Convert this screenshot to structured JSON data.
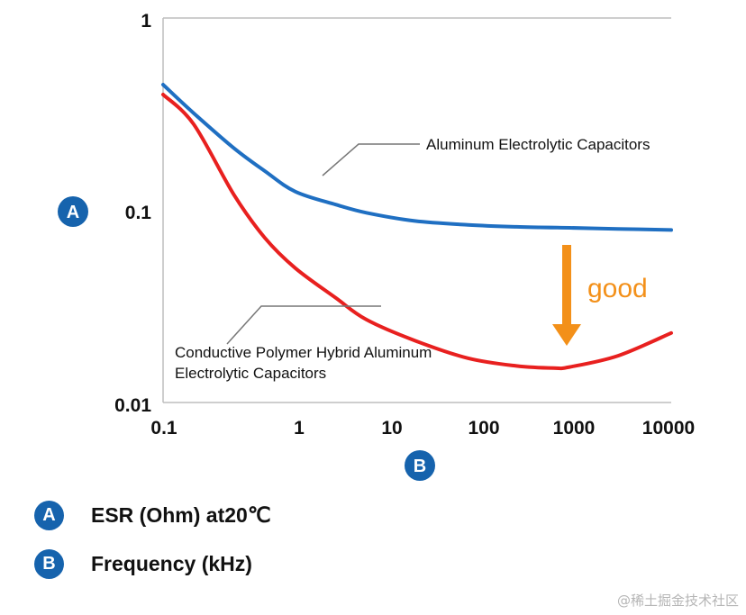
{
  "chart_data": {
    "type": "line",
    "x_scale": "log",
    "y_scale": "log",
    "xlim": [
      0.1,
      10000
    ],
    "ylim": [
      0.01,
      1
    ],
    "x_ticks": [
      "0.1",
      "1",
      "10",
      "100",
      "1000",
      "10000"
    ],
    "y_ticks": [
      "1",
      "0.1",
      "0.01"
    ],
    "grid": false,
    "x_axis_badge": "B",
    "y_axis_badge": "A",
    "series": [
      {
        "label": "Aluminum Electrolytic Capacitors",
        "color": "#1f6fc2",
        "points": [
          [
            0.1,
            0.45
          ],
          [
            0.2,
            0.32
          ],
          [
            0.5,
            0.21
          ],
          [
            1,
            0.16
          ],
          [
            2,
            0.125
          ],
          [
            5,
            0.107
          ],
          [
            10,
            0.097
          ],
          [
            30,
            0.088
          ],
          [
            100,
            0.084
          ],
          [
            300,
            0.082
          ],
          [
            1000,
            0.081
          ],
          [
            3000,
            0.08
          ],
          [
            10000,
            0.079
          ]
        ]
      },
      {
        "label_lines": [
          "Conductive Polymer Hybrid Aluminum",
          "Electrolytic Capacitors"
        ],
        "color": "#e8201f",
        "points": [
          [
            0.1,
            0.4
          ],
          [
            0.2,
            0.28
          ],
          [
            0.5,
            0.12
          ],
          [
            1,
            0.072
          ],
          [
            2,
            0.05
          ],
          [
            5,
            0.035
          ],
          [
            10,
            0.027
          ],
          [
            30,
            0.021
          ],
          [
            100,
            0.017
          ],
          [
            300,
            0.0155
          ],
          [
            700,
            0.0151
          ],
          [
            1000,
            0.0153
          ],
          [
            3000,
            0.0175
          ],
          [
            10000,
            0.023
          ]
        ]
      }
    ],
    "annotation": {
      "text": "good",
      "color": "#f39019"
    }
  },
  "legend": [
    {
      "badge": "A",
      "label": "ESR (Ohm) at20℃"
    },
    {
      "badge": "B",
      "label": "Frequency (kHz)"
    }
  ],
  "watermark": "@稀土掘金技术社区"
}
